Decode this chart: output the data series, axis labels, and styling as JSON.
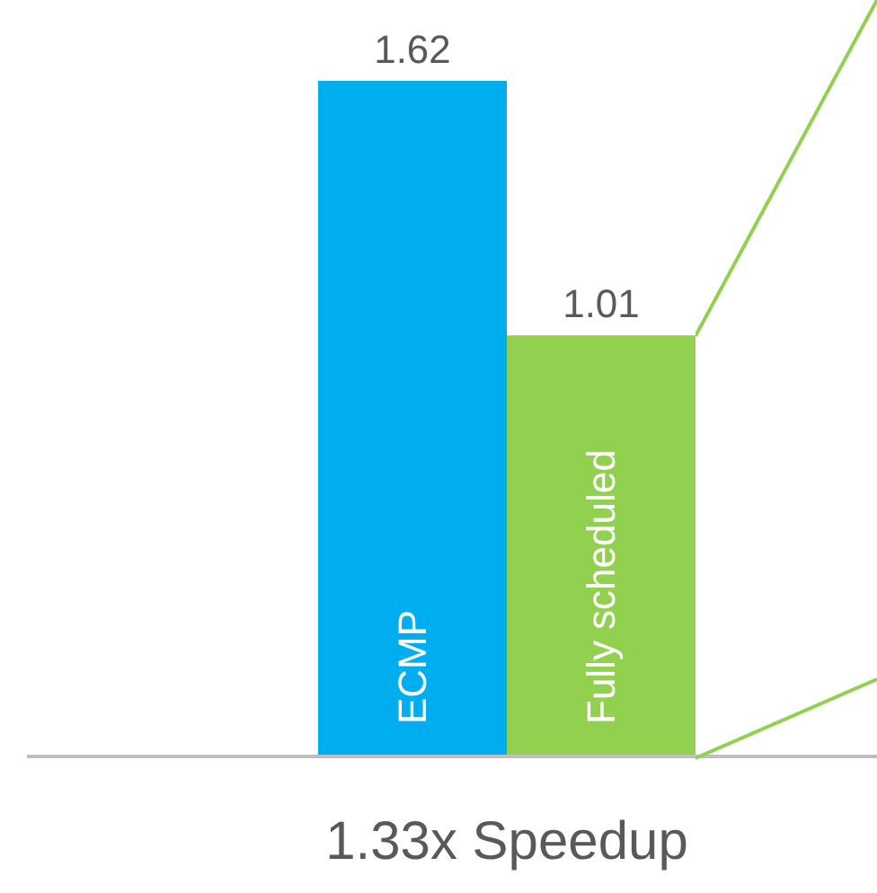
{
  "chart_data": {
    "type": "bar",
    "xlabel": "1.33x Speedup",
    "categories": [
      "ECMP",
      "Fully scheduled"
    ],
    "values": [
      1.62,
      1.01
    ],
    "colors": [
      "#00aeef",
      "#92d050"
    ],
    "data_labels": true
  }
}
